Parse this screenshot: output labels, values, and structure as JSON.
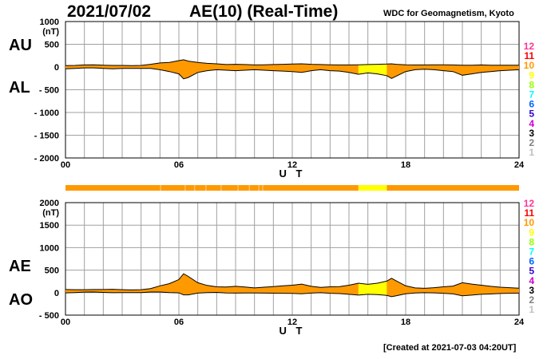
{
  "header": {
    "date": "2021/07/02",
    "title": "AE(10) (Real-Time)",
    "source": "WDC for Geomagnetism, Kyoto"
  },
  "footer": {
    "created": "[Created at 2021-07-03 04:20UT]"
  },
  "colors": {
    "grid": "#a0a0a0",
    "fill_main": "#ff9900",
    "fill_yellow": "#ffff00",
    "bar_main": "#ff9900",
    "bar_yellow": "#ffff00",
    "bar_light": "#ffc060"
  },
  "station_key": [
    {
      "label": "12",
      "color": "#ff3399"
    },
    {
      "label": "11",
      "color": "#ff0000"
    },
    {
      "label": "10",
      "color": "#ff9900"
    },
    {
      "label": "9",
      "color": "#ffff00"
    },
    {
      "label": "8",
      "color": "#99ff00"
    },
    {
      "label": "7",
      "color": "#00ffff"
    },
    {
      "label": "6",
      "color": "#0066ff"
    },
    {
      "label": "5",
      "color": "#3300cc"
    },
    {
      "label": "4",
      "color": "#cc00cc"
    },
    {
      "label": "3",
      "color": "#000000"
    },
    {
      "label": "2",
      "color": "#808080"
    },
    {
      "label": "1",
      "color": "#c0c0c0"
    }
  ],
  "chart_data": [
    {
      "type": "area",
      "name": "AU/AL",
      "xlabel": "U T",
      "ylabel_unit": "(nT)",
      "series_labels": [
        "AU",
        "AL"
      ],
      "xlim": [
        0,
        24
      ],
      "ylim": [
        -2000,
        1000
      ],
      "x_ticks": [
        "00",
        "06",
        "12",
        "18",
        "24"
      ],
      "y_ticks": [
        "1000",
        "500",
        "0",
        "- 500",
        "- 1000",
        "- 1500",
        "- 2000"
      ],
      "grid": true,
      "x": [
        0,
        0.5,
        1,
        1.5,
        2,
        2.5,
        3,
        3.5,
        4,
        4.5,
        5,
        5.5,
        6,
        6.25,
        6.5,
        7,
        7.5,
        8,
        8.5,
        9,
        9.5,
        10,
        10.5,
        11,
        11.5,
        12,
        12.5,
        13,
        13.5,
        14,
        14.5,
        15,
        15.5,
        16,
        16.5,
        17,
        17.25,
        17.5,
        18,
        18.5,
        19,
        19.5,
        20,
        20.5,
        21,
        21.5,
        22,
        22.5,
        23,
        23.5,
        24
      ],
      "series": [
        {
          "name": "AU",
          "values": [
            30,
            35,
            45,
            50,
            40,
            35,
            35,
            30,
            35,
            60,
            90,
            100,
            140,
            160,
            130,
            100,
            80,
            70,
            55,
            60,
            55,
            45,
            50,
            55,
            60,
            65,
            70,
            60,
            55,
            50,
            45,
            45,
            50,
            55,
            60,
            65,
            70,
            60,
            50,
            45,
            45,
            50,
            50,
            45,
            40,
            40,
            45,
            40,
            40,
            40,
            40
          ]
        },
        {
          "name": "AL",
          "values": [
            -40,
            -30,
            -20,
            -20,
            -30,
            -40,
            -30,
            -30,
            -30,
            -30,
            -60,
            -100,
            -150,
            -260,
            -230,
            -120,
            -80,
            -60,
            -70,
            -80,
            -70,
            -60,
            -70,
            -80,
            -90,
            -100,
            -120,
            -80,
            -60,
            -80,
            -90,
            -120,
            -160,
            -130,
            -150,
            -190,
            -250,
            -200,
            -100,
            -60,
            -50,
            -60,
            -80,
            -100,
            -180,
            -150,
            -120,
            -100,
            -80,
            -70,
            -60
          ]
        }
      ]
    },
    {
      "type": "area",
      "name": "AE/AO",
      "xlabel": "U T",
      "ylabel_unit": "(nT)",
      "series_labels": [
        "AE",
        "AO"
      ],
      "xlim": [
        0,
        24
      ],
      "ylim": [
        -500,
        2000
      ],
      "x_ticks": [
        "00",
        "06",
        "12",
        "18",
        "24"
      ],
      "y_ticks": [
        "2000",
        "1500",
        "1000",
        "500",
        "0",
        "- 500"
      ],
      "grid": true,
      "x": [
        0,
        0.5,
        1,
        1.5,
        2,
        2.5,
        3,
        3.5,
        4,
        4.5,
        5,
        5.5,
        6,
        6.25,
        6.5,
        7,
        7.5,
        8,
        8.5,
        9,
        9.5,
        10,
        10.5,
        11,
        11.5,
        12,
        12.5,
        13,
        13.5,
        14,
        14.5,
        15,
        15.5,
        16,
        16.5,
        17,
        17.25,
        17.5,
        18,
        18.5,
        19,
        19.5,
        20,
        20.5,
        21,
        21.5,
        22,
        22.5,
        23,
        23.5,
        24
      ],
      "series": [
        {
          "name": "AE",
          "values": [
            70,
            65,
            65,
            70,
            70,
            75,
            65,
            60,
            65,
            90,
            150,
            200,
            290,
            420,
            360,
            220,
            160,
            130,
            125,
            140,
            125,
            105,
            120,
            135,
            150,
            165,
            190,
            140,
            115,
            130,
            135,
            165,
            210,
            185,
            210,
            255,
            320,
            260,
            150,
            105,
            95,
            110,
            130,
            145,
            220,
            190,
            165,
            140,
            120,
            110,
            100
          ]
        },
        {
          "name": "AO",
          "values": [
            -5,
            2,
            12,
            15,
            5,
            -2,
            2,
            0,
            2,
            15,
            15,
            0,
            -5,
            -50,
            -50,
            -10,
            0,
            5,
            -8,
            -10,
            -8,
            -8,
            -10,
            -12,
            -15,
            -18,
            -25,
            -10,
            -2,
            -15,
            -22,
            -38,
            -55,
            -38,
            -45,
            -62,
            -90,
            -70,
            -25,
            -8,
            -2,
            -5,
            -15,
            -28,
            -70,
            -55,
            -38,
            -30,
            -20,
            -15,
            -10
          ]
        }
      ]
    }
  ],
  "station_bar": {
    "xlim": [
      0,
      24
    ],
    "segments": [
      {
        "start": 0,
        "end": 15.5,
        "level": "main"
      },
      {
        "start": 15.5,
        "end": 17,
        "level": "yellow"
      },
      {
        "start": 17,
        "end": 24,
        "level": "main"
      }
    ],
    "marks": [
      5,
      6.3,
      6.8,
      7.4,
      8.2,
      9.1,
      9.7,
      10.2,
      10.4
    ]
  }
}
